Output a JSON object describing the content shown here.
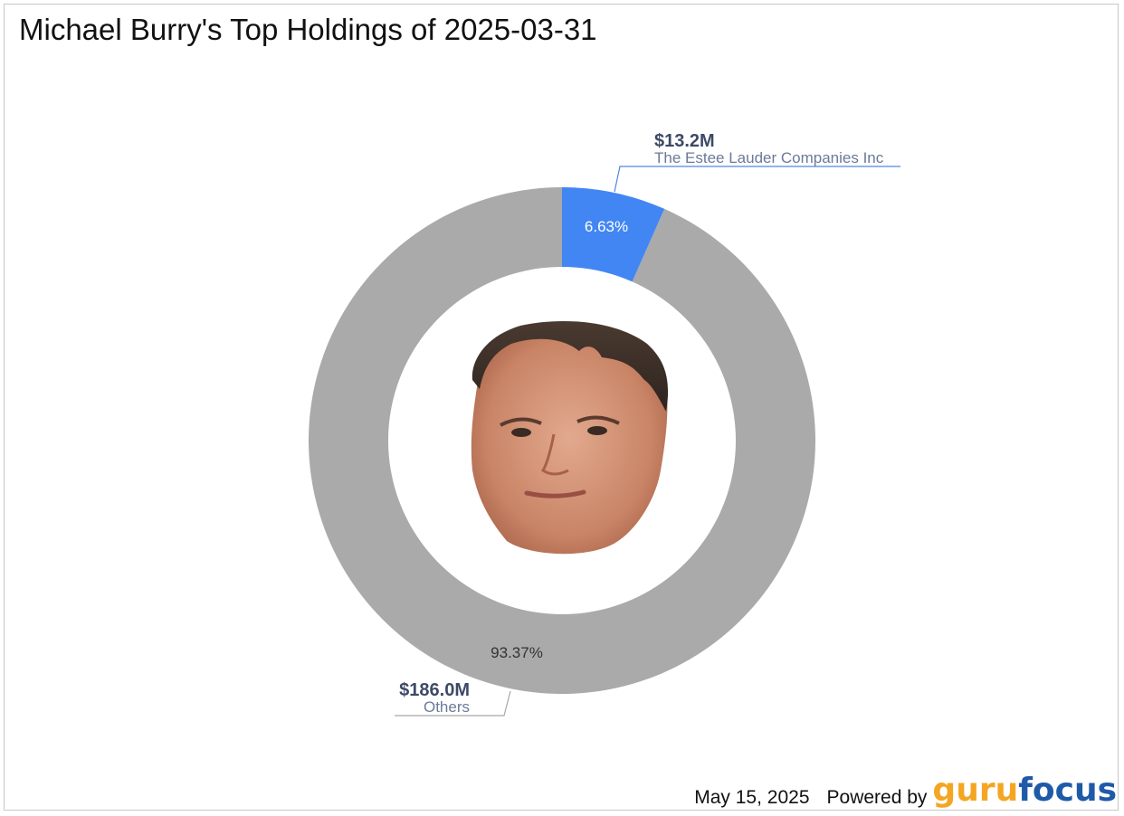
{
  "title": "Michael Burry's Top Holdings of 2025-03-31",
  "footer": {
    "date": "May 15, 2025",
    "powered_by": "Powered by",
    "logo_part1": "guru",
    "logo_part2": "focus"
  },
  "colors": {
    "estee": "#4286f4",
    "others": "#aaaaaa",
    "label_value": "#3d4a66",
    "label_name": "#6b7a99",
    "estee_leader": "#4f86e0",
    "others_leader": "#a8a8a8",
    "logo_guru": "#f4a623",
    "logo_focus": "#1e5aa8"
  },
  "center_image": "portrait-photo",
  "chart_data": {
    "type": "pie",
    "donut": true,
    "title": "Michael Burry's Top Holdings of 2025-03-31",
    "slices": [
      {
        "name": "The Estee Lauder Companies Inc",
        "value_label": "$13.2M",
        "value": 13.2,
        "percent": 6.63,
        "percent_label": "6.63%",
        "color": "#4286f4"
      },
      {
        "name": "Others",
        "value_label": "$186.0M",
        "value": 186.0,
        "percent": 93.37,
        "percent_label": "93.37%",
        "color": "#aaaaaa"
      }
    ]
  }
}
